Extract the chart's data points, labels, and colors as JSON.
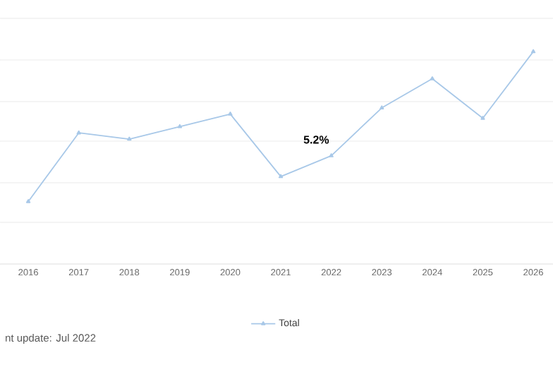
{
  "chart_data": {
    "type": "line",
    "categories": [
      "2016",
      "2017",
      "2018",
      "2019",
      "2020",
      "2021",
      "2022",
      "2023",
      "2024",
      "2025",
      "2026"
    ],
    "series": [
      {
        "name": "Total",
        "color": "#a8c8e8",
        "values": [
          3.0,
          6.3,
          6.0,
          6.6,
          7.2,
          4.2,
          5.2,
          7.5,
          8.9,
          7.0,
          10.2
        ],
        "value_labels": [
          null,
          null,
          null,
          null,
          null,
          null,
          "5.2%",
          null,
          null,
          null,
          null
        ]
      }
    ],
    "ylim": [
      0,
      11.8
    ],
    "yticks": [
      {
        "value": 0,
        "label": null
      },
      {
        "value": 2,
        "label": null
      },
      {
        "value": 3.9,
        "label": null
      },
      {
        "value": 5.9,
        "label": null
      },
      {
        "value": 7.8,
        "label": null
      },
      {
        "value": 9.8,
        "label": null
      },
      {
        "value": 11.8,
        "label": null
      }
    ],
    "grid": "y",
    "legend": "bottom",
    "marker": "triangle",
    "annotations": [
      "nt update: Jul 2022"
    ]
  }
}
